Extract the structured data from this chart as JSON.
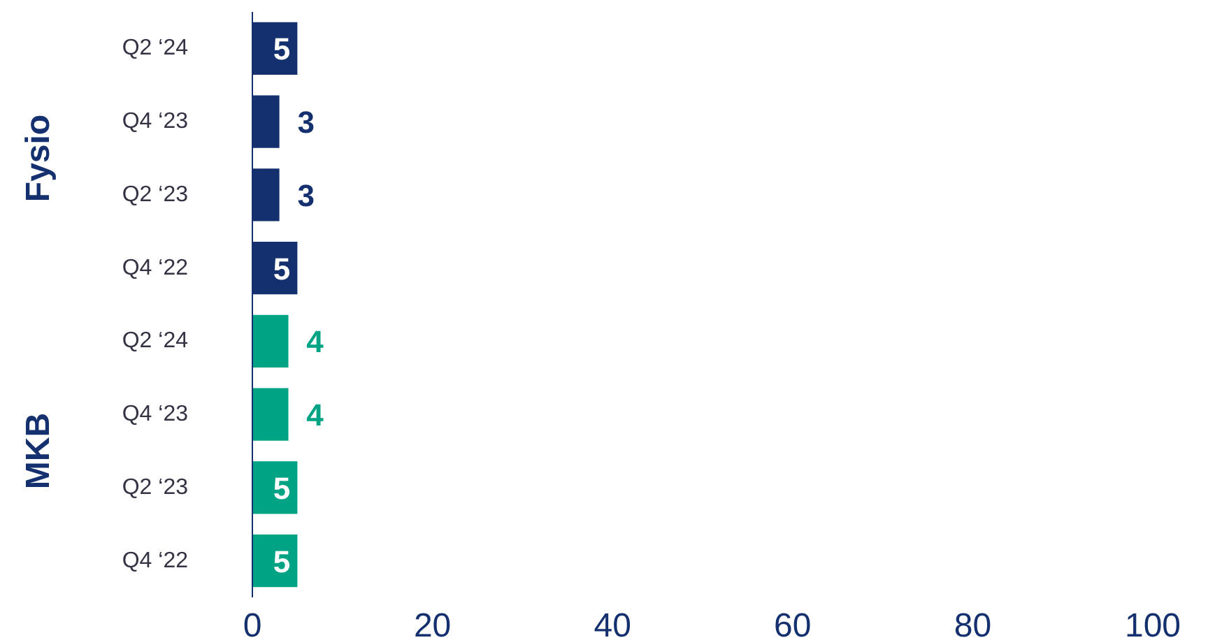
{
  "chart_data": {
    "type": "bar",
    "orientation": "horizontal",
    "categories": [
      "Q2 ‘24",
      "Q4 ‘23",
      "Q2 ‘23",
      "Q4 ‘22",
      "Q2 ‘24",
      "Q4 ‘23",
      "Q2 ‘23",
      "Q4 ‘22"
    ],
    "series": [
      {
        "color": "#15306e",
        "values": [
          5,
          3,
          3,
          5,
          null,
          null,
          null,
          null
        ]
      },
      {
        "color": "#00a384",
        "values": [
          null,
          null,
          null,
          null,
          4,
          4,
          5,
          5
        ]
      }
    ],
    "annotations": [
      "Fysio",
      "MKB"
    ],
    "xlim": [
      0,
      100
    ],
    "xticks": [
      0,
      20,
      40,
      60,
      80,
      100
    ],
    "data_labels": true,
    "grid": false
  }
}
